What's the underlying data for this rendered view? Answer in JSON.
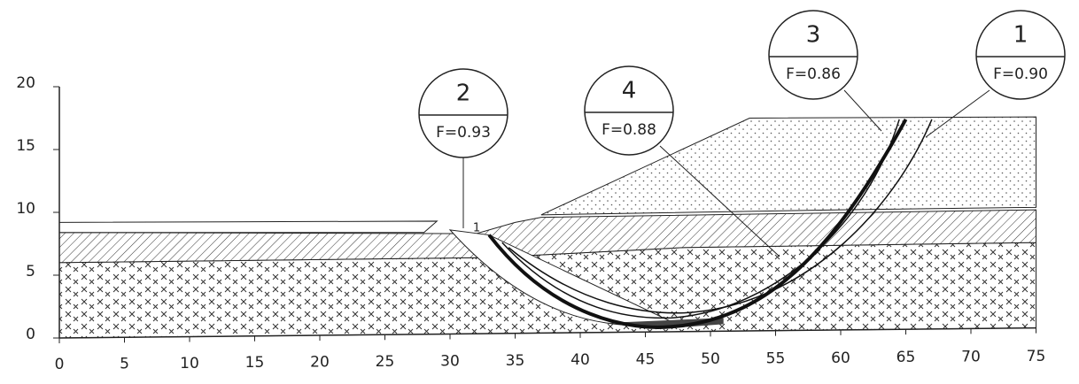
{
  "axes": {
    "x_ticks": [
      0,
      5,
      10,
      15,
      20,
      25,
      30,
      35,
      40,
      45,
      50,
      55,
      60,
      65,
      70,
      75
    ],
    "y_ticks": [
      0,
      5,
      10,
      15,
      20
    ]
  },
  "surfaces": [
    {
      "number": "2",
      "factor": "F=0.93"
    },
    {
      "number": "4",
      "factor": "F=0.88"
    },
    {
      "number": "3",
      "factor": "F=0.86"
    },
    {
      "number": "1",
      "factor": "F=0.90"
    }
  ],
  "marker": "1"
}
